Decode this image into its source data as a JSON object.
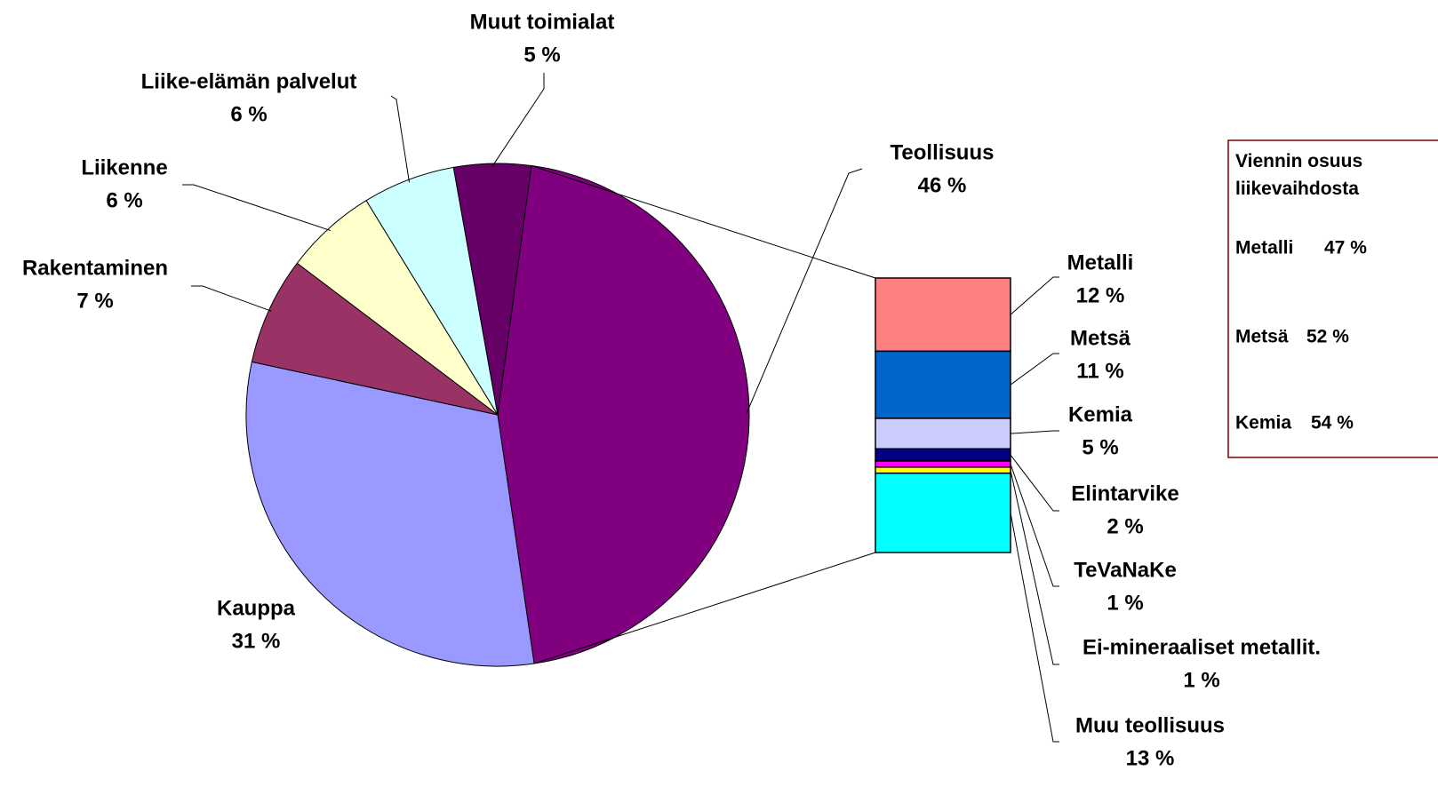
{
  "chart_data": {
    "type": "pie",
    "categories": [
      "Teollisuus",
      "Kauppa",
      "Rakentaminen",
      "Liikenne",
      "Liike-elämän palvelut",
      "Muut toimialat"
    ],
    "values": [
      46,
      31,
      7,
      6,
      6,
      5
    ],
    "value_labels": [
      "46 %",
      "31 %",
      "7 %",
      "6 %",
      "6 %",
      "5 %"
    ],
    "colors": [
      "#800080",
      "#9999ff",
      "#993366",
      "#ffffcc",
      "#ccffff",
      "#660066"
    ],
    "breakdown": {
      "categories": [
        "Metalli",
        "Metsä",
        "Kemia",
        "Elintarvike",
        "TeVaNaKe",
        "Ei-mineraaliset metallit.",
        "Muu teollisuus"
      ],
      "values": [
        12,
        11,
        5,
        2,
        1,
        1,
        13
      ],
      "value_labels": [
        "12 %",
        "11 %",
        "5 %",
        "2 %",
        "1 %",
        "1 %",
        "13 %"
      ],
      "colors": [
        "#ff8080",
        "#0066cc",
        "#ccccff",
        "#000080",
        "#ff00ff",
        "#ffff00",
        "#00ffff"
      ]
    }
  },
  "box": {
    "title": "Viennin osuus liikevaihdosta",
    "items": [
      {
        "name": "Metalli",
        "value": "47 %"
      },
      {
        "name": "Metsä",
        "value": "52 %"
      },
      {
        "name": "Kemia",
        "value": "54 %"
      }
    ]
  }
}
